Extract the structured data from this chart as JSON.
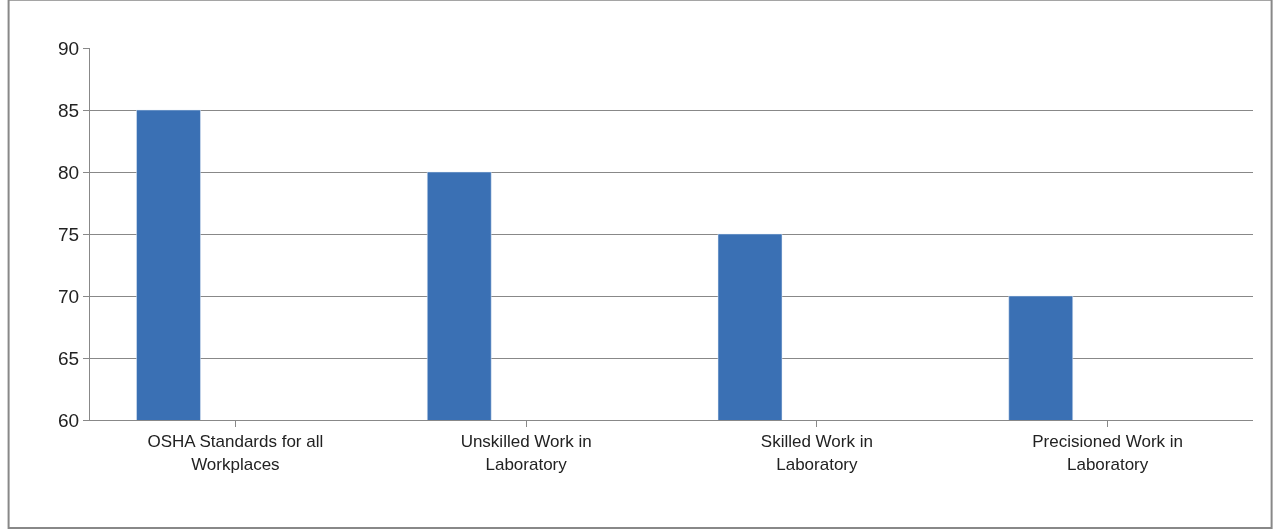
{
  "chart_data": {
    "type": "bar",
    "categories": [
      "OSHA Standards for all Workplaces",
      "Unskilled Work in Laboratory",
      "Skilled Work in Laboratory",
      "Precisioned Work in Laboratory"
    ],
    "values": [
      85,
      80,
      75,
      70
    ],
    "color": "#3a70b4",
    "ylim": [
      60,
      90
    ],
    "yticks": [
      60,
      65,
      70,
      75,
      80,
      85,
      90
    ],
    "grid": "y",
    "legend": false
  }
}
